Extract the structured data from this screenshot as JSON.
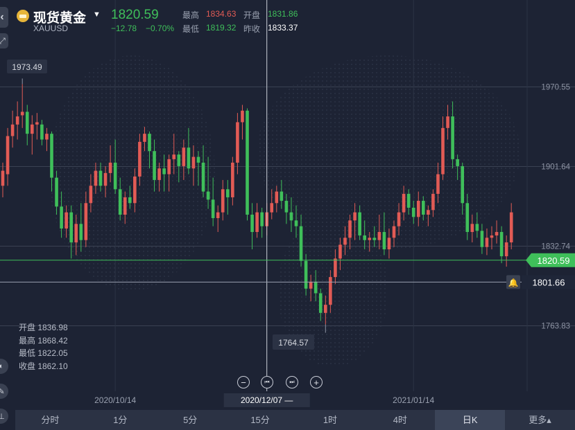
{
  "header": {
    "title": "现货黄金",
    "symbol": "XAUUSD",
    "last_price": "1820.59",
    "change": "−12.78",
    "change_pct": "−0.70%",
    "high_label": "最高",
    "high_value": "1834.63",
    "open_label": "开盘",
    "open_value": "1831.86",
    "low_label": "最低",
    "low_value": "1819.32",
    "prev_close_label": "昨收",
    "prev_close_value": "1833.37"
  },
  "ohlc_panel": {
    "open": "开盘 1836.98",
    "high": "最高 1868.42",
    "low": "最低 1822.05",
    "close": "收盘 1862.10"
  },
  "tooltips": {
    "max_label": "1973.49",
    "min_label": "1764.57",
    "crosshair_date": "2020/12/07 —",
    "current_price": "1820.59",
    "alert_price": "1801.66"
  },
  "controls": {
    "zoom_out": "−",
    "prev": "⏮",
    "next": "⏭",
    "zoom_in": "+"
  },
  "tabs": [
    "分时",
    "1分",
    "5分",
    "15分",
    "1时",
    "4时",
    "日K",
    "更多▴"
  ],
  "active_tab": "日K",
  "colors": {
    "up": "#e25b55",
    "down": "#3fbf5a",
    "background": "#1d2334",
    "grid": "#3a4152"
  },
  "chart_data": {
    "type": "candlestick",
    "ylim": [
      1745,
      2000
    ],
    "y_ticks": [
      1970.55,
      1901.64,
      1832.74,
      1763.83
    ],
    "y_tick_labels": [
      "1970.55",
      "1901.64",
      "1832.74",
      "1763.83"
    ],
    "x_ticks": [
      {
        "index": 23,
        "label": "2020/10/14"
      },
      {
        "index": 54,
        "label": "2020/12/07"
      },
      {
        "index": 84,
        "label": "2021/01/14"
      }
    ],
    "current_price": 1820.59,
    "alert_price": 1801.66,
    "candles": [
      [
        1885,
        1905,
        1875,
        1898
      ],
      [
        1895,
        1935,
        1885,
        1928
      ],
      [
        1928,
        1950,
        1918,
        1938
      ],
      [
        1938,
        1958,
        1925,
        1945
      ],
      [
        1946,
        1973,
        1935,
        1949
      ],
      [
        1949,
        1955,
        1920,
        1930
      ],
      [
        1930,
        1946,
        1912,
        1938
      ],
      [
        1938,
        1948,
        1925,
        1940
      ],
      [
        1938,
        1942,
        1920,
        1925
      ],
      [
        1925,
        1935,
        1915,
        1930
      ],
      [
        1930,
        1932,
        1880,
        1892
      ],
      [
        1892,
        1898,
        1860,
        1867
      ],
      [
        1867,
        1880,
        1840,
        1848
      ],
      [
        1848,
        1868,
        1840,
        1862
      ],
      [
        1862,
        1868,
        1822,
        1836
      ],
      [
        1836,
        1860,
        1825,
        1852
      ],
      [
        1852,
        1870,
        1828,
        1838
      ],
      [
        1838,
        1880,
        1832,
        1870
      ],
      [
        1870,
        1895,
        1862,
        1885
      ],
      [
        1885,
        1905,
        1878,
        1898
      ],
      [
        1898,
        1905,
        1880,
        1885
      ],
      [
        1885,
        1902,
        1875,
        1896
      ],
      [
        1896,
        1920,
        1888,
        1905
      ],
      [
        1905,
        1925,
        1878,
        1882
      ],
      [
        1882,
        1892,
        1855,
        1860
      ],
      [
        1860,
        1880,
        1852,
        1875
      ],
      [
        1875,
        1885,
        1865,
        1870
      ],
      [
        1870,
        1900,
        1862,
        1893
      ],
      [
        1893,
        1930,
        1885,
        1923
      ],
      [
        1923,
        1936,
        1915,
        1930
      ],
      [
        1930,
        1932,
        1900,
        1915
      ],
      [
        1915,
        1925,
        1880,
        1890
      ],
      [
        1890,
        1905,
        1880,
        1900
      ],
      [
        1900,
        1912,
        1880,
        1895
      ],
      [
        1895,
        1912,
        1880,
        1908
      ],
      [
        1908,
        1930,
        1895,
        1912
      ],
      [
        1912,
        1915,
        1888,
        1902
      ],
      [
        1902,
        1925,
        1890,
        1918
      ],
      [
        1918,
        1935,
        1895,
        1900
      ],
      [
        1900,
        1920,
        1885,
        1910
      ],
      [
        1910,
        1915,
        1885,
        1905
      ],
      [
        1905,
        1920,
        1875,
        1880
      ],
      [
        1880,
        1910,
        1865,
        1873
      ],
      [
        1873,
        1892,
        1850,
        1857
      ],
      [
        1857,
        1868,
        1845,
        1862
      ],
      [
        1862,
        1890,
        1855,
        1882
      ],
      [
        1882,
        1890,
        1860,
        1875
      ],
      [
        1875,
        1910,
        1868,
        1905
      ],
      [
        1905,
        1948,
        1895,
        1940
      ],
      [
        1940,
        1955,
        1925,
        1950
      ],
      [
        1950,
        1952,
        1855,
        1860
      ],
      [
        1860,
        1870,
        1830,
        1845
      ],
      [
        1845,
        1870,
        1840,
        1862
      ],
      [
        1862,
        1866,
        1840,
        1850
      ],
      [
        1850,
        1870,
        1842,
        1862
      ],
      [
        1862,
        1882,
        1856,
        1870
      ],
      [
        1870,
        1885,
        1862,
        1880
      ],
      [
        1880,
        1890,
        1865,
        1872
      ],
      [
        1872,
        1878,
        1852,
        1862
      ],
      [
        1862,
        1875,
        1845,
        1855
      ],
      [
        1855,
        1868,
        1840,
        1850
      ],
      [
        1850,
        1860,
        1815,
        1820
      ],
      [
        1820,
        1826,
        1790,
        1796
      ],
      [
        1796,
        1808,
        1785,
        1802
      ],
      [
        1802,
        1812,
        1785,
        1792
      ],
      [
        1792,
        1796,
        1768,
        1775
      ],
      [
        1775,
        1790,
        1765,
        1782
      ],
      [
        1782,
        1812,
        1775,
        1806
      ],
      [
        1806,
        1830,
        1800,
        1822
      ],
      [
        1822,
        1840,
        1812,
        1834
      ],
      [
        1834,
        1850,
        1825,
        1840
      ],
      [
        1840,
        1860,
        1830,
        1855
      ],
      [
        1855,
        1870,
        1838,
        1862
      ],
      [
        1862,
        1868,
        1838,
        1842
      ],
      [
        1842,
        1855,
        1830,
        1838
      ],
      [
        1838,
        1845,
        1828,
        1840
      ],
      [
        1840,
        1850,
        1832,
        1838
      ],
      [
        1838,
        1860,
        1830,
        1845
      ],
      [
        1845,
        1862,
        1825,
        1830
      ],
      [
        1830,
        1848,
        1822,
        1840
      ],
      [
        1840,
        1855,
        1832,
        1850
      ],
      [
        1850,
        1870,
        1842,
        1862
      ],
      [
        1862,
        1885,
        1855,
        1878
      ],
      [
        1878,
        1882,
        1860,
        1866
      ],
      [
        1866,
        1872,
        1852,
        1858
      ],
      [
        1858,
        1880,
        1850,
        1872
      ],
      [
        1872,
        1876,
        1855,
        1860
      ],
      [
        1860,
        1868,
        1850,
        1864
      ],
      [
        1864,
        1882,
        1858,
        1878
      ],
      [
        1878,
        1905,
        1870,
        1895
      ],
      [
        1895,
        1945,
        1890,
        1935
      ],
      [
        1935,
        1955,
        1925,
        1945
      ],
      [
        1945,
        1958,
        1900,
        1908
      ],
      [
        1908,
        1912,
        1890,
        1902
      ],
      [
        1902,
        1905,
        1860,
        1870
      ],
      [
        1870,
        1878,
        1838,
        1845
      ],
      [
        1845,
        1860,
        1836,
        1852
      ],
      [
        1852,
        1862,
        1840,
        1846
      ],
      [
        1846,
        1852,
        1826,
        1832
      ],
      [
        1832,
        1848,
        1825,
        1840
      ],
      [
        1840,
        1850,
        1830,
        1842
      ],
      [
        1842,
        1855,
        1835,
        1845
      ],
      [
        1845,
        1850,
        1818,
        1824
      ],
      [
        1824,
        1842,
        1815,
        1836
      ],
      [
        1836,
        1870,
        1830,
        1862
      ]
    ]
  }
}
